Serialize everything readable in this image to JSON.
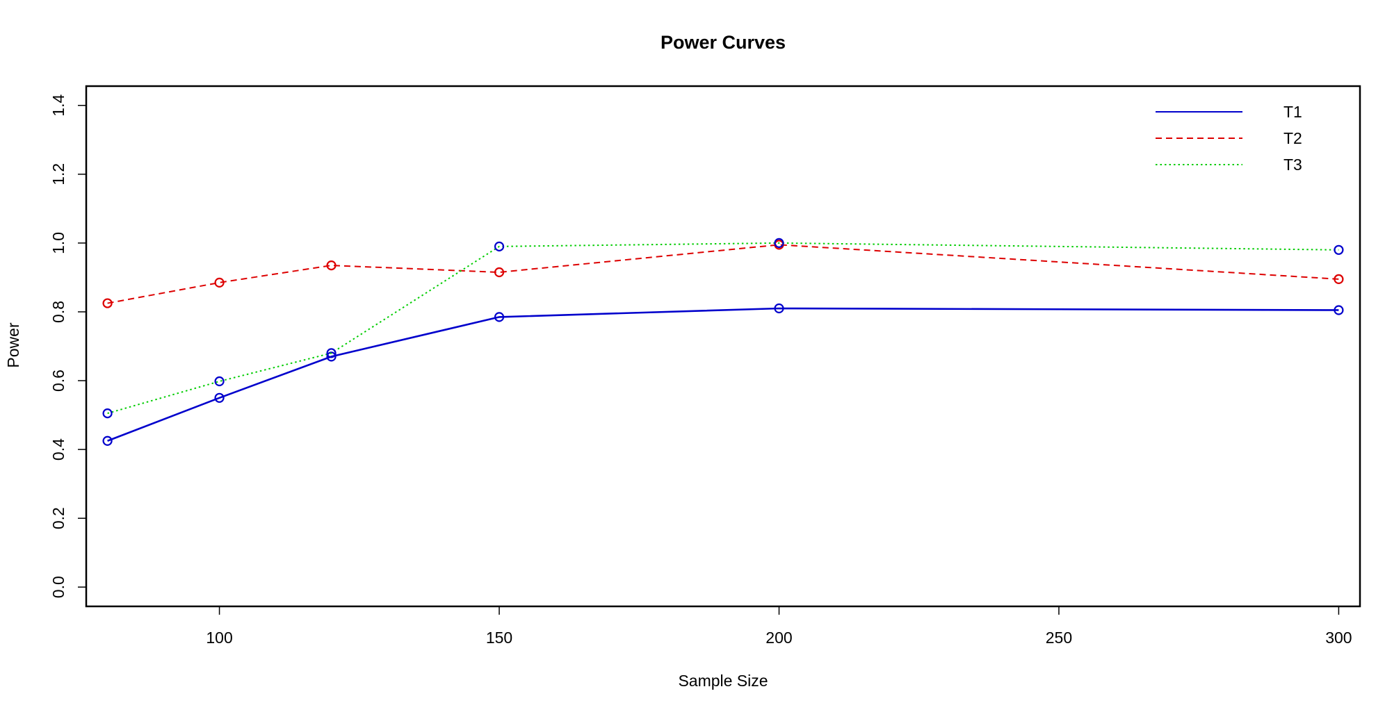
{
  "chart_data": {
    "type": "line",
    "title": "Power Curves",
    "xlabel": "Sample Size",
    "ylabel": "Power",
    "x": [
      80,
      100,
      120,
      150,
      200,
      300
    ],
    "xlim": [
      76.2,
      303.8
    ],
    "ylim": [
      -0.056,
      1.456
    ],
    "xticks": [
      100,
      150,
      200,
      250,
      300
    ],
    "xtick_labels": [
      "100",
      "150",
      "200",
      "250",
      "300"
    ],
    "yticks": [
      0.0,
      0.2,
      0.4,
      0.6,
      0.8,
      1.0,
      1.2,
      1.4
    ],
    "ytick_labels": [
      "0.0",
      "0.2",
      "0.4",
      "0.6",
      "0.8",
      "1.0",
      "1.2",
      "1.4"
    ],
    "grid": false,
    "legend_position": "top-right",
    "series": [
      {
        "name": "T1",
        "values": [
          0.425,
          0.55,
          0.67,
          0.785,
          0.81,
          0.805
        ],
        "color": "#0000cc",
        "dash": "solid",
        "marker_color": "#0000cc"
      },
      {
        "name": "T2",
        "values": [
          0.825,
          0.885,
          0.935,
          0.915,
          0.995,
          0.895
        ],
        "color": "#dd0000",
        "dash": "dashed",
        "marker_color": "#dd0000"
      },
      {
        "name": "T3",
        "values": [
          0.505,
          0.598,
          0.68,
          0.99,
          1.0,
          0.98
        ],
        "color": "#00cc00",
        "dash": "dotted",
        "marker_color": "#0000cc"
      }
    ]
  }
}
